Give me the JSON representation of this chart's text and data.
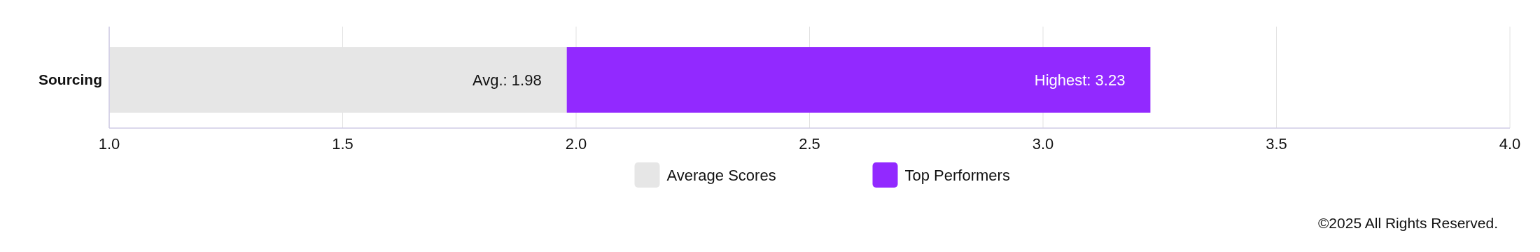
{
  "chart_data": {
    "type": "bar",
    "orientation": "horizontal",
    "stacked": true,
    "categories": [
      "Sourcing"
    ],
    "series": [
      {
        "name": "Average Scores",
        "color": "#e6e6e6",
        "values": [
          1.98
        ]
      },
      {
        "name": "Top Performers",
        "color": "#9229ff",
        "values": [
          1.25
        ]
      }
    ],
    "xlim": [
      1.0,
      4.0
    ],
    "xticks": [
      {
        "value": 1.0,
        "label": "1.0"
      },
      {
        "value": 1.5,
        "label": "1.5"
      },
      {
        "value": 2.0,
        "label": "2.0"
      },
      {
        "value": 2.5,
        "label": "2.5"
      },
      {
        "value": 3.0,
        "label": "3.0"
      },
      {
        "value": 3.5,
        "label": "3.5"
      },
      {
        "value": 4.0,
        "label": "4.0"
      }
    ],
    "grid": "x",
    "legend": "bottom",
    "annotations": [
      {
        "text": "Avg.: 1.98",
        "x": 1.98,
        "y": "Sourcing"
      },
      {
        "text": "Highest: 3.23",
        "x": 3.23,
        "y": "Sourcing"
      },
      "©2025 All Rights Reserved."
    ]
  }
}
